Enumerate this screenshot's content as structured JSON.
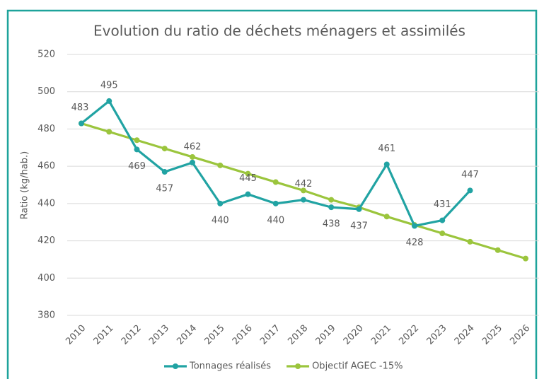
{
  "chart_data": {
    "type": "line",
    "title": "Evolution du ratio de déchets ménagers et assimilés",
    "y_label": "Ratio (kg/hab.)",
    "categories": [
      "2010",
      "2011",
      "2012",
      "2013",
      "2014",
      "2015",
      "2016",
      "2017",
      "2018",
      "2019",
      "2020",
      "2021",
      "2022",
      "2023",
      "2024",
      "2025",
      "2026"
    ],
    "series": [
      {
        "name": "Tonnages réalisés",
        "color": "#21a3a3",
        "data_labels": true,
        "values": [
          483,
          495,
          469,
          457,
          462,
          440,
          445,
          440,
          442,
          438,
          437,
          461,
          428,
          431,
          447,
          null,
          null
        ]
      },
      {
        "name": "Objectif AGEC -15%",
        "color": "#9bc53d",
        "data_labels": false,
        "values": [
          483,
          478.5,
          474,
          469.5,
          465,
          460.5,
          456,
          451.5,
          447,
          442,
          438,
          433,
          428.5,
          424,
          419.5,
          415,
          410.5
        ]
      }
    ],
    "ylim": [
      380,
      520
    ],
    "yticks": [
      380,
      400,
      420,
      440,
      460,
      480,
      500,
      520
    ],
    "grid": true,
    "legend": "bottom"
  }
}
